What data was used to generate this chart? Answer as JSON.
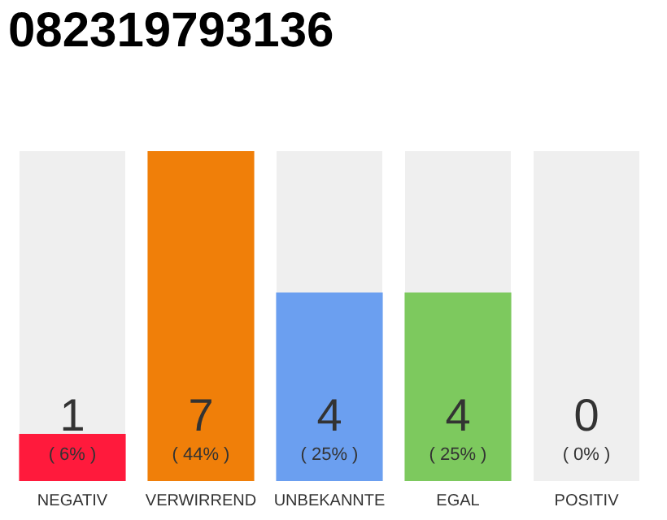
{
  "chart_data": {
    "type": "bar",
    "title": "082319793136",
    "categories": [
      "NEGATIV",
      "VERWIRREND",
      "UNBEKANNTE",
      "EGAL",
      "POSITIV"
    ],
    "values": [
      1,
      7,
      4,
      4,
      0
    ],
    "colors": [
      "#ff1a3c",
      "#f07f09",
      "#6b9ff0",
      "#7dc95e",
      "#e0e0e0"
    ],
    "data_labels": true,
    "annotations": [
      {
        "text": "( 6% )",
        "x": "NEGATIV",
        "y": 0
      },
      {
        "text": "( 44% )",
        "x": "VERWIRREND",
        "y": 0
      },
      {
        "text": "( 25% )",
        "x": "UNBEKANNTE",
        "y": 0
      },
      {
        "text": "( 25% )",
        "x": "EGAL",
        "y": 0
      },
      {
        "text": "( 0% )",
        "x": "POSITIV",
        "y": 0
      }
    ],
    "grid": false,
    "legend": false
  }
}
